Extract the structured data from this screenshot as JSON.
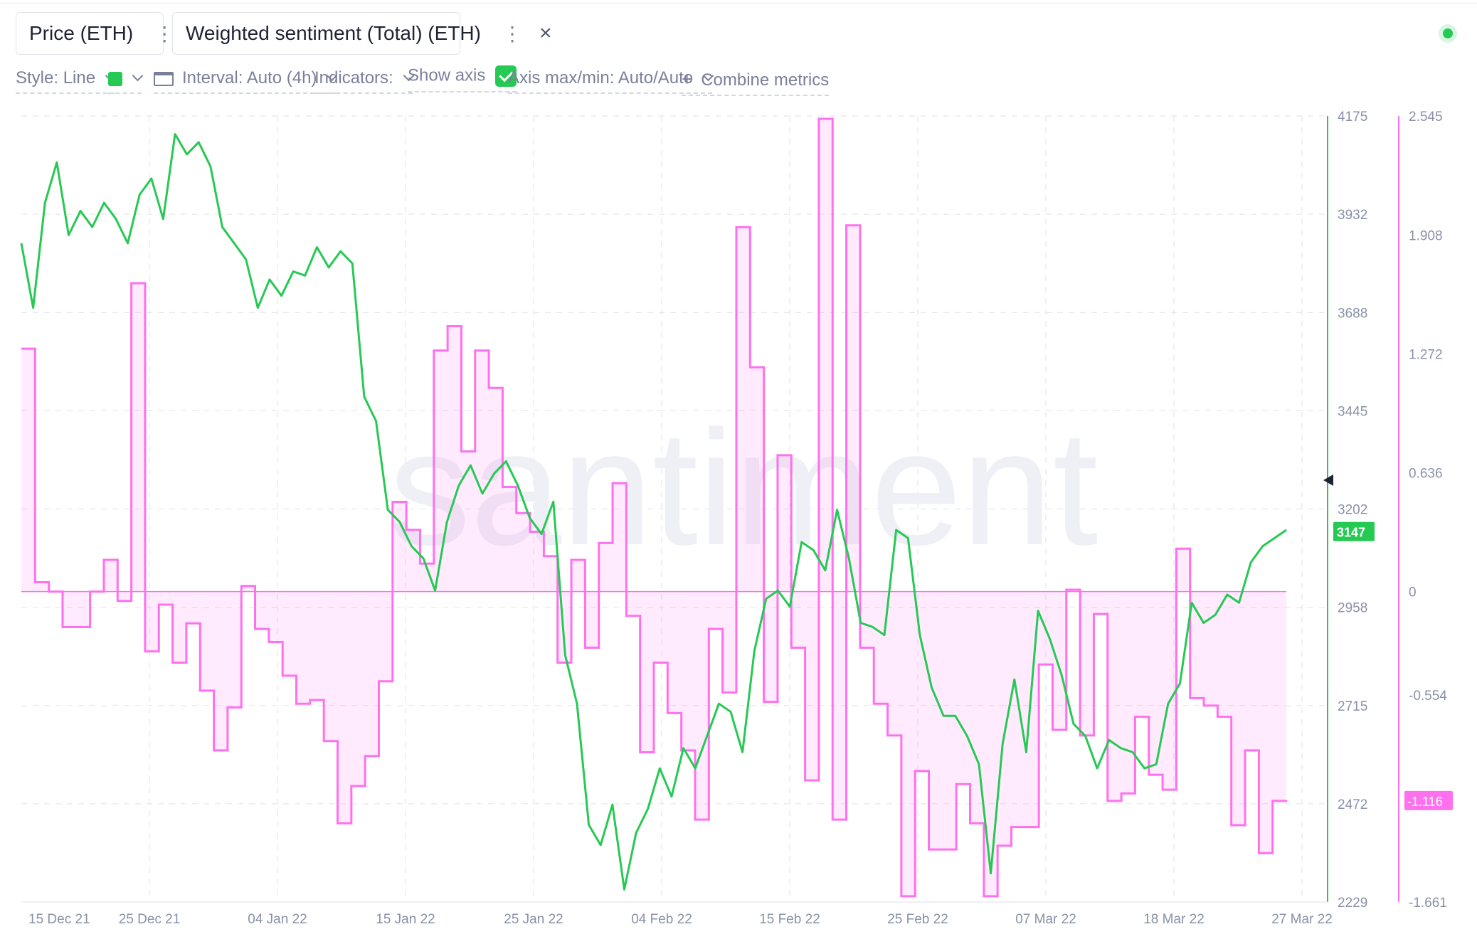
{
  "metrics": [
    {
      "label": "Price (ETH)",
      "color": "#26c953",
      "menu_icon": "kebab-icon",
      "close_icon": "close-icon"
    },
    {
      "label": "Weighted sentiment (Total) (ETH)",
      "color": "#ff70ef",
      "menu_icon": "kebab-icon",
      "close_icon": "close-icon"
    }
  ],
  "toolbar": {
    "style_label": "Style: Line",
    "interval_label": "Interval: Auto (4h)",
    "indicators_label": "Indicators:",
    "show_axis_label": "Show axis",
    "show_axis_checked": true,
    "axis_maxmin_label": "Axis max/min: Auto/Auto",
    "combine_label": "Combine metrics",
    "combine_icon": "+"
  },
  "watermark": "santiment",
  "chart_data": {
    "type": "line",
    "x_tick_labels": [
      "15 Dec 21",
      "25 Dec 21",
      "04 Jan 22",
      "15 Jan 22",
      "25 Jan 22",
      "04 Feb 22",
      "15 Feb 22",
      "25 Feb 22",
      "07 Mar 22",
      "18 Mar 22",
      "27 Mar 22"
    ],
    "price_axis": {
      "ticks": [
        "4175",
        "3932",
        "3688",
        "3445",
        "3202",
        "2958",
        "2715",
        "2472",
        "2229"
      ],
      "ylim": [
        2229,
        4175
      ],
      "current_label": "3147",
      "color": "#26c953"
    },
    "sentiment_axis": {
      "ticks": [
        "2.545",
        "1.908",
        "1.272",
        "0.636",
        "0",
        "-0.554",
        "-1.116",
        "-1.661"
      ],
      "ylim": [
        -1.661,
        2.545
      ],
      "current_label": "-1.116",
      "color": "#ff70ef"
    },
    "grid": true,
    "series": [
      {
        "name": "Price (ETH)",
        "type": "line",
        "color": "#26c953",
        "values": [
          [
            0,
            3860
          ],
          [
            1,
            3700
          ],
          [
            2,
            3960
          ],
          [
            3,
            4060
          ],
          [
            4,
            3880
          ],
          [
            5,
            3940
          ],
          [
            6,
            3900
          ],
          [
            7,
            3960
          ],
          [
            8,
            3920
          ],
          [
            9,
            3860
          ],
          [
            10,
            3980
          ],
          [
            11,
            4020
          ],
          [
            12,
            3920
          ],
          [
            13,
            4130
          ],
          [
            14,
            4080
          ],
          [
            15,
            4110
          ],
          [
            16,
            4050
          ],
          [
            17,
            3900
          ],
          [
            18,
            3860
          ],
          [
            19,
            3820
          ],
          [
            20,
            3700
          ],
          [
            21,
            3770
          ],
          [
            22,
            3730
          ],
          [
            23,
            3790
          ],
          [
            24,
            3780
          ],
          [
            25,
            3850
          ],
          [
            26,
            3800
          ],
          [
            27,
            3840
          ],
          [
            28,
            3810
          ],
          [
            29,
            3480
          ],
          [
            30,
            3420
          ],
          [
            31,
            3200
          ],
          [
            32,
            3170
          ],
          [
            33,
            3110
          ],
          [
            34,
            3080
          ],
          [
            35,
            3000
          ],
          [
            36,
            3170
          ],
          [
            37,
            3260
          ],
          [
            38,
            3310
          ],
          [
            39,
            3240
          ],
          [
            40,
            3290
          ],
          [
            41,
            3320
          ],
          [
            42,
            3260
          ],
          [
            43,
            3180
          ],
          [
            44,
            3140
          ],
          [
            45,
            3220
          ],
          [
            46,
            2840
          ],
          [
            47,
            2720
          ],
          [
            48,
            2420
          ],
          [
            49,
            2370
          ],
          [
            50,
            2470
          ],
          [
            51,
            2260
          ],
          [
            52,
            2400
          ],
          [
            53,
            2460
          ],
          [
            54,
            2560
          ],
          [
            55,
            2490
          ],
          [
            56,
            2610
          ],
          [
            57,
            2560
          ],
          [
            58,
            2640
          ],
          [
            59,
            2720
          ],
          [
            60,
            2700
          ],
          [
            61,
            2600
          ],
          [
            62,
            2850
          ],
          [
            63,
            2980
          ],
          [
            64,
            3000
          ],
          [
            65,
            2960
          ],
          [
            66,
            3120
          ],
          [
            67,
            3100
          ],
          [
            68,
            3050
          ],
          [
            69,
            3200
          ],
          [
            70,
            3080
          ],
          [
            71,
            2920
          ],
          [
            72,
            2910
          ],
          [
            73,
            2890
          ],
          [
            74,
            3150
          ],
          [
            75,
            3130
          ],
          [
            76,
            2890
          ],
          [
            77,
            2760
          ],
          [
            78,
            2690
          ],
          [
            79,
            2690
          ],
          [
            80,
            2640
          ],
          [
            81,
            2570
          ],
          [
            82,
            2300
          ],
          [
            83,
            2620
          ],
          [
            84,
            2780
          ],
          [
            85,
            2600
          ],
          [
            86,
            2950
          ],
          [
            87,
            2880
          ],
          [
            88,
            2790
          ],
          [
            89,
            2670
          ],
          [
            90,
            2640
          ],
          [
            91,
            2560
          ],
          [
            92,
            2630
          ],
          [
            93,
            2610
          ],
          [
            94,
            2600
          ],
          [
            95,
            2560
          ],
          [
            96,
            2570
          ],
          [
            97,
            2720
          ],
          [
            98,
            2770
          ],
          [
            99,
            2970
          ],
          [
            100,
            2920
          ],
          [
            101,
            2940
          ],
          [
            102,
            2990
          ],
          [
            103,
            2970
          ],
          [
            104,
            3070
          ],
          [
            105,
            3110
          ],
          [
            106,
            3130
          ],
          [
            107,
            3150
          ]
        ]
      },
      {
        "name": "Weighted sentiment (Total) (ETH)",
        "type": "area",
        "color": "#ff70ef",
        "values": [
          [
            0,
            1.3
          ],
          [
            1,
            0.05
          ],
          [
            2,
            0.0
          ],
          [
            3,
            -0.19
          ],
          [
            4,
            -0.19
          ],
          [
            5,
            0.0
          ],
          [
            6,
            0.17
          ],
          [
            7,
            -0.05
          ],
          [
            8,
            1.65
          ],
          [
            9,
            -0.32
          ],
          [
            10,
            -0.07
          ],
          [
            11,
            -0.38
          ],
          [
            12,
            -0.17
          ],
          [
            13,
            -0.53
          ],
          [
            14,
            -0.85
          ],
          [
            15,
            -0.62
          ],
          [
            16,
            0.03
          ],
          [
            17,
            -0.2
          ],
          [
            18,
            -0.27
          ],
          [
            19,
            -0.45
          ],
          [
            20,
            -0.6
          ],
          [
            21,
            -0.58
          ],
          [
            22,
            -0.8
          ],
          [
            23,
            -1.24
          ],
          [
            24,
            -1.04
          ],
          [
            25,
            -0.88
          ],
          [
            26,
            -0.48
          ],
          [
            27,
            0.48
          ],
          [
            28,
            0.33
          ],
          [
            29,
            0.15
          ],
          [
            30,
            1.29
          ],
          [
            31,
            1.42
          ],
          [
            32,
            0.75
          ],
          [
            33,
            1.29
          ],
          [
            34,
            1.09
          ],
          [
            35,
            0.56
          ],
          [
            36,
            0.42
          ],
          [
            37,
            0.32
          ],
          [
            38,
            0.19
          ],
          [
            39,
            -0.38
          ],
          [
            40,
            0.17
          ],
          [
            41,
            -0.3
          ],
          [
            42,
            0.26
          ],
          [
            43,
            0.58
          ],
          [
            44,
            -0.13
          ],
          [
            45,
            -0.86
          ],
          [
            46,
            -0.38
          ],
          [
            47,
            -0.65
          ],
          [
            48,
            -0.85
          ],
          [
            49,
            -1.22
          ],
          [
            50,
            -0.2
          ],
          [
            51,
            -0.54
          ],
          [
            52,
            1.95
          ],
          [
            53,
            1.2
          ],
          [
            54,
            -0.59
          ],
          [
            55,
            0.73
          ],
          [
            56,
            -0.3
          ],
          [
            57,
            -1.01
          ],
          [
            58,
            2.53
          ],
          [
            59,
            -1.22
          ],
          [
            60,
            1.96
          ],
          [
            61,
            -0.3
          ],
          [
            62,
            -0.6
          ],
          [
            63,
            -0.77
          ],
          [
            64,
            -1.63
          ],
          [
            65,
            -0.96
          ],
          [
            66,
            -1.38
          ],
          [
            67,
            -1.38
          ],
          [
            68,
            -1.03
          ],
          [
            69,
            -1.24
          ],
          [
            70,
            -1.63
          ],
          [
            71,
            -1.36
          ],
          [
            72,
            -1.26
          ],
          [
            73,
            -1.26
          ],
          [
            74,
            -0.39
          ],
          [
            75,
            -0.74
          ],
          [
            76,
            0.01
          ],
          [
            77,
            -0.77
          ],
          [
            78,
            -0.12
          ],
          [
            79,
            -1.12
          ],
          [
            80,
            -1.08
          ],
          [
            81,
            -0.67
          ],
          [
            82,
            -0.98
          ],
          [
            83,
            -1.06
          ],
          [
            84,
            0.23
          ],
          [
            85,
            -0.57
          ],
          [
            86,
            -0.61
          ],
          [
            87,
            -0.67
          ],
          [
            88,
            -1.25
          ],
          [
            89,
            -0.85
          ],
          [
            90,
            -1.4
          ],
          [
            91,
            -1.12
          ],
          [
            92,
            -1.116
          ]
        ]
      }
    ],
    "y_left_label": "",
    "y_right_label": "",
    "xlabel": "",
    "title": ""
  }
}
